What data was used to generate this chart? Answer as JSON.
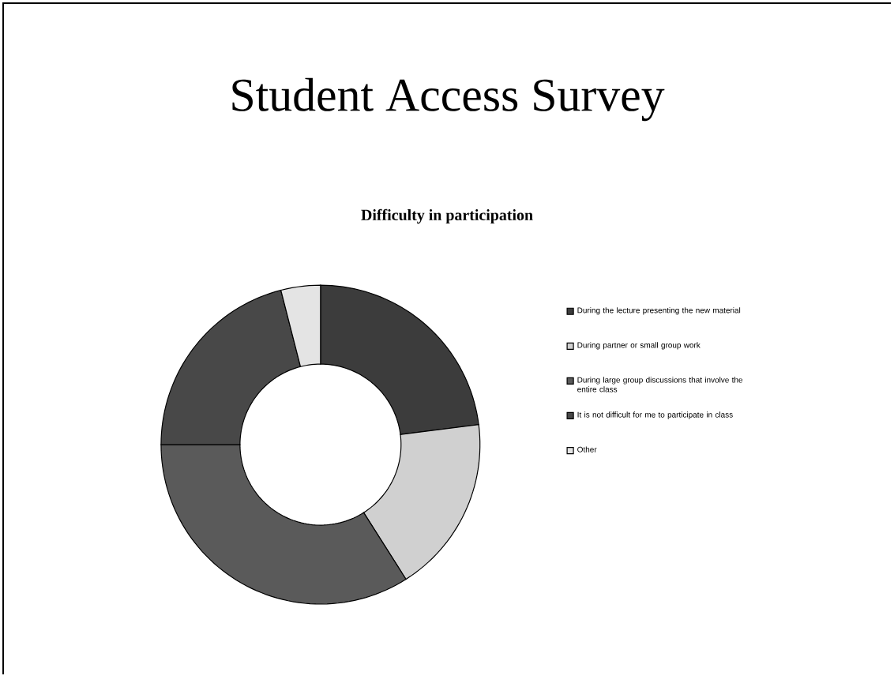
{
  "chart_data": {
    "type": "donut",
    "title": "Student Access Survey",
    "subtitle": "Difficulty in participation",
    "categories": [
      "During the lecture presenting the new material",
      "During partner or small group work",
      "During large group discussions that involve the entire class",
      "It is not difficult for me to participate in class",
      "Other"
    ],
    "values": [
      23,
      18,
      34,
      21,
      4
    ],
    "colors": [
      "#3c3c3c",
      "#d0d0d0",
      "#5a5a5a",
      "#484848",
      "#e4e4e4"
    ],
    "legend": "right"
  }
}
